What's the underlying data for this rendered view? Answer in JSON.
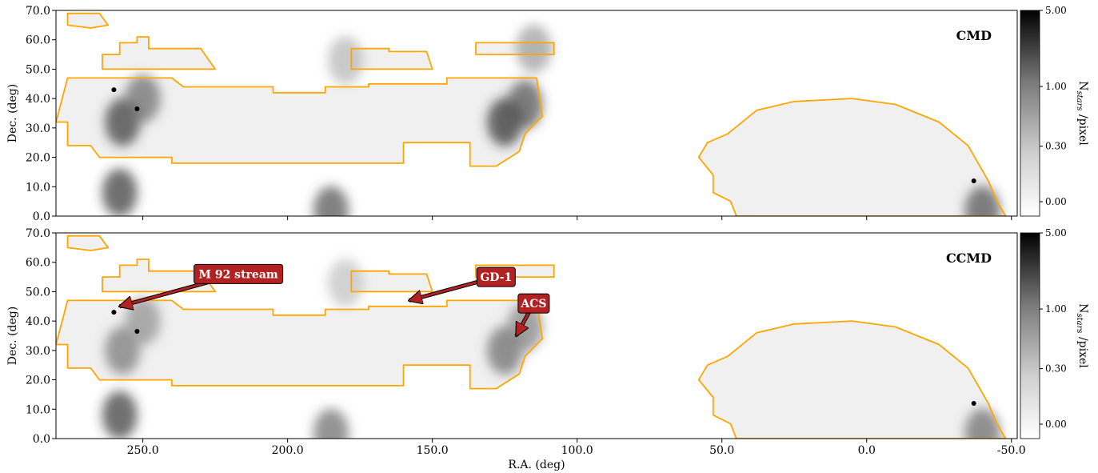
{
  "chart_data": [
    {
      "type": "heatmap",
      "title": "",
      "panel_label": "CMD",
      "xlabel": "",
      "ylabel": "Dec. (deg)",
      "xlim": [
        280,
        -52
      ],
      "ylim": [
        0,
        70
      ],
      "x_direction": "decreasing",
      "x_ticks": [
        250,
        200,
        150,
        100,
        50,
        0,
        -50
      ],
      "x_tick_labels_shown": false,
      "y_ticks": [
        0,
        10,
        20,
        30,
        40,
        50,
        60,
        70
      ],
      "y_tick_labels": [
        "0.0",
        "10.0",
        "20.0",
        "30.0",
        "40.0",
        "50.0",
        "60.0",
        "70.0"
      ],
      "colormap": "Greys",
      "colorbar": {
        "label_base": "N",
        "label_sub": "stars",
        "label_tail": " /pixel",
        "ticks": [
          5.0,
          1.0,
          0.3,
          0.0
        ],
        "tick_labels": [
          "5.00",
          "1.00",
          "0.30",
          "0.00"
        ]
      },
      "footprint_outline_color": "#ffa500",
      "density_blobs": [
        {
          "ra": 257,
          "dec": 32,
          "level": 0.8
        },
        {
          "ra": 250,
          "dec": 40,
          "level": 0.6
        },
        {
          "ra": 125,
          "dec": 32,
          "level": 0.85
        },
        {
          "ra": 118,
          "dec": 38,
          "level": 0.7
        },
        {
          "ra": 185,
          "dec": 2,
          "level": 0.7
        },
        {
          "ra": 258,
          "dec": 8,
          "level": 0.8
        },
        {
          "ra": -40,
          "dec": 2,
          "level": 0.7
        },
        {
          "ra": 115,
          "dec": 57,
          "level": 0.4
        },
        {
          "ra": 180,
          "dec": 53,
          "level": 0.3
        }
      ],
      "point_sources": [
        {
          "ra": 260,
          "dec": 43
        },
        {
          "ra": 252,
          "dec": 36.5
        },
        {
          "ra": -37,
          "dec": 12
        }
      ]
    },
    {
      "type": "heatmap",
      "title": "",
      "panel_label": "CCMD",
      "xlabel": "R.A. (deg)",
      "ylabel": "Dec. (deg)",
      "xlim": [
        280,
        -52
      ],
      "ylim": [
        0,
        70
      ],
      "x_direction": "decreasing",
      "x_ticks": [
        250,
        200,
        150,
        100,
        50,
        0,
        -50
      ],
      "x_tick_labels": [
        "250.0",
        "200.0",
        "150.0",
        "100.0",
        "50.0",
        "0.0",
        "-50.0"
      ],
      "y_ticks": [
        0,
        10,
        20,
        30,
        40,
        50,
        60,
        70
      ],
      "y_tick_labels": [
        "0.0",
        "10.0",
        "20.0",
        "30.0",
        "40.0",
        "50.0",
        "60.0",
        "70.0"
      ],
      "colormap": "Greys",
      "colorbar": {
        "label_base": "N",
        "label_sub": "stars",
        "label_tail": " /pixel",
        "ticks": [
          5.0,
          1.0,
          0.3,
          0.0
        ],
        "tick_labels": [
          "5.00",
          "1.00",
          "0.30",
          "0.00"
        ]
      },
      "footprint_outline_color": "#ffa500",
      "density_blobs": [
        {
          "ra": 257,
          "dec": 30,
          "level": 0.55
        },
        {
          "ra": 250,
          "dec": 40,
          "level": 0.45
        },
        {
          "ra": 125,
          "dec": 30,
          "level": 0.6
        },
        {
          "ra": 118,
          "dec": 38,
          "level": 0.5
        },
        {
          "ra": 185,
          "dec": 2,
          "level": 0.6
        },
        {
          "ra": 258,
          "dec": 8,
          "level": 0.8
        },
        {
          "ra": -40,
          "dec": 2,
          "level": 0.6
        },
        {
          "ra": 180,
          "dec": 53,
          "level": 0.25
        }
      ],
      "point_sources": [
        {
          "ra": 260,
          "dec": 43
        },
        {
          "ra": 252,
          "dec": 36.5
        },
        {
          "ra": -37,
          "dec": 12
        }
      ],
      "annotations": [
        {
          "text": "M 92 stream",
          "label_ra": 217,
          "label_dec": 56,
          "arrow_ra": 258,
          "arrow_dec": 45
        },
        {
          "text": "GD-1",
          "label_ra": 128,
          "label_dec": 55,
          "arrow_ra": 158,
          "arrow_dec": 47
        },
        {
          "text": "ACS",
          "label_ra": 115,
          "label_dec": 46,
          "arrow_ra": 121,
          "arrow_dec": 35
        }
      ],
      "annotation_color": "#b22222"
    }
  ]
}
